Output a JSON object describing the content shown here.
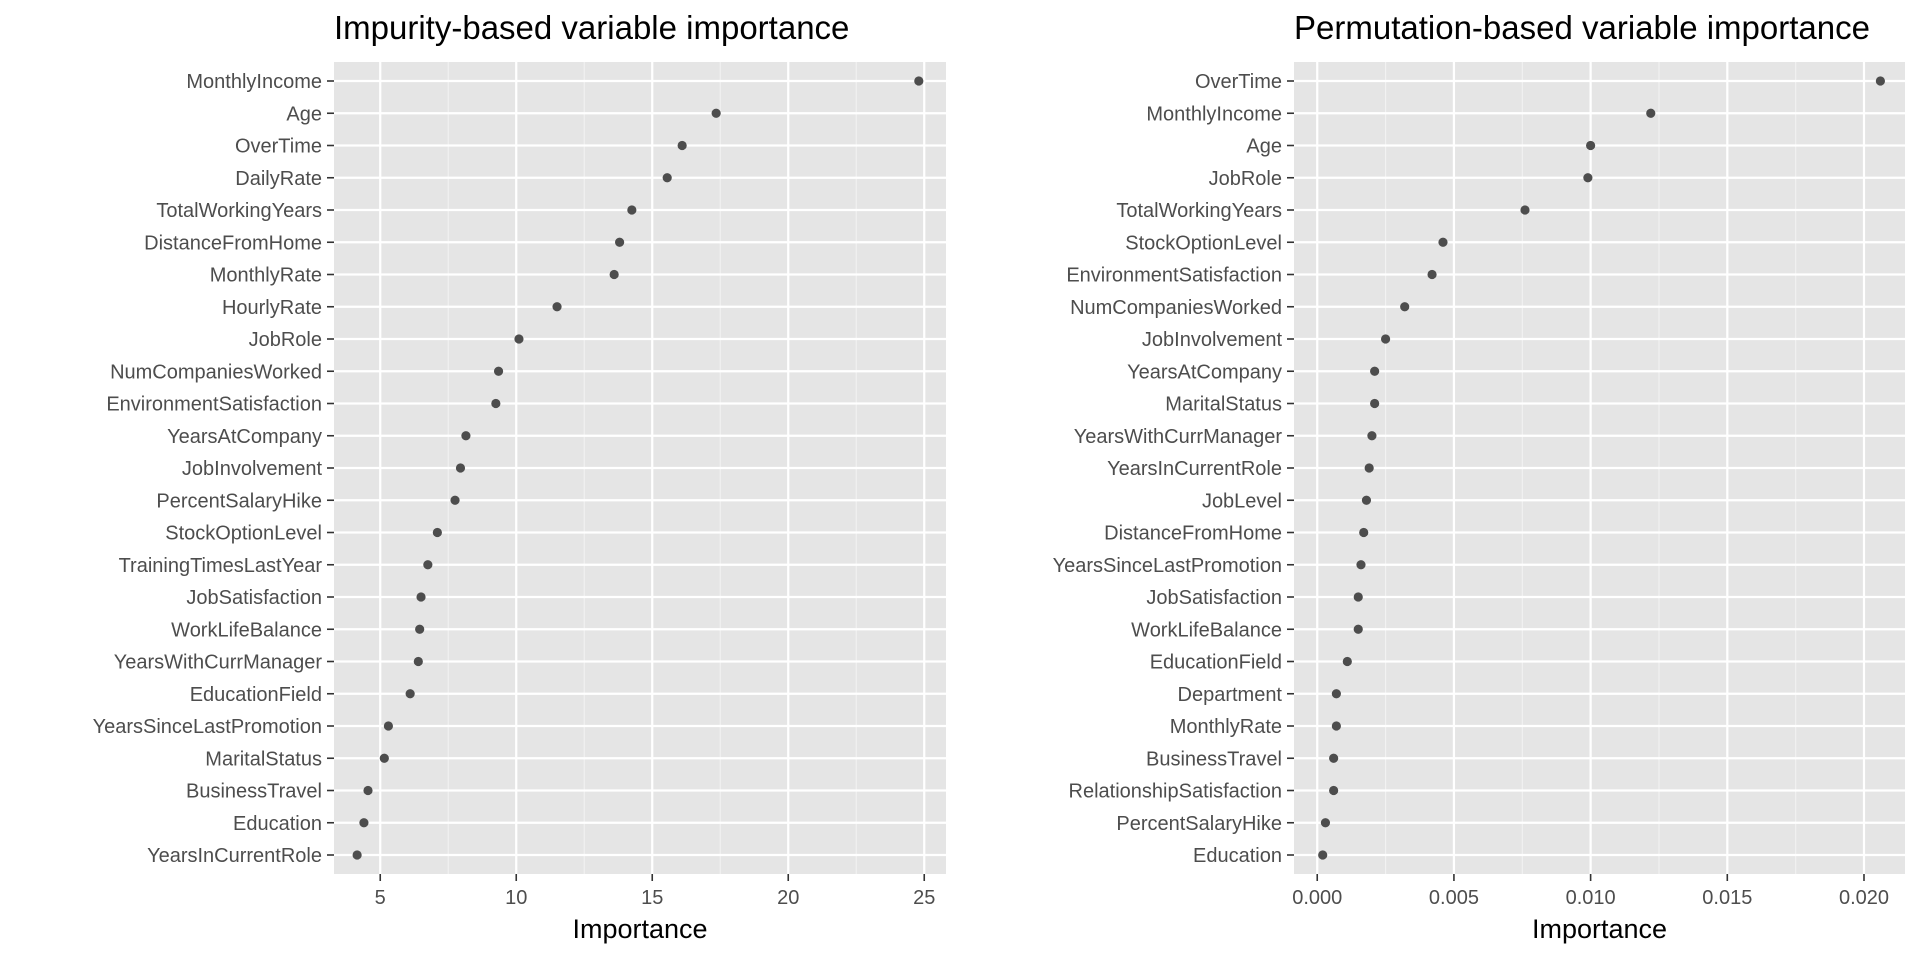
{
  "chart_data": [
    {
      "type": "scatter",
      "title": "Impurity-based variable importance",
      "xlabel": "Importance",
      "ylabel": "",
      "xlim": [
        3.3,
        25.8
      ],
      "xticks": [
        5,
        10,
        15,
        20,
        25
      ],
      "xtick_labels": [
        "5",
        "10",
        "15",
        "20",
        "25"
      ],
      "grid": true,
      "categories": [
        "MonthlyIncome",
        "Age",
        "OverTime",
        "DailyRate",
        "TotalWorkingYears",
        "DistanceFromHome",
        "MonthlyRate",
        "HourlyRate",
        "JobRole",
        "NumCompaniesWorked",
        "EnvironmentSatisfaction",
        "YearsAtCompany",
        "JobInvolvement",
        "PercentSalaryHike",
        "StockOptionLevel",
        "TrainingTimesLastYear",
        "JobSatisfaction",
        "WorkLifeBalance",
        "YearsWithCurrManager",
        "EducationField",
        "YearsSinceLastPromotion",
        "MaritalStatus",
        "BusinessTravel",
        "Education",
        "YearsInCurrentRole"
      ],
      "values": [
        24.8,
        17.35,
        16.1,
        15.55,
        14.25,
        13.8,
        13.6,
        11.5,
        10.1,
        9.35,
        9.25,
        8.15,
        7.95,
        7.75,
        7.1,
        6.75,
        6.5,
        6.45,
        6.4,
        6.1,
        5.3,
        5.15,
        4.55,
        4.4,
        4.15
      ],
      "point_color": "#4d4d4d"
    },
    {
      "type": "scatter",
      "title": "Permutation-based variable importance",
      "xlabel": "Importance",
      "ylabel": "",
      "xlim": [
        -0.00085,
        0.0215
      ],
      "xticks": [
        0,
        0.005,
        0.01,
        0.015,
        0.02
      ],
      "xtick_labels": [
        "0.000",
        "0.005",
        "0.010",
        "0.015",
        "0.020"
      ],
      "grid": true,
      "categories": [
        "OverTime",
        "MonthlyIncome",
        "Age",
        "JobRole",
        "TotalWorkingYears",
        "StockOptionLevel",
        "EnvironmentSatisfaction",
        "NumCompaniesWorked",
        "JobInvolvement",
        "YearsAtCompany",
        "MaritalStatus",
        "YearsWithCurrManager",
        "YearsInCurrentRole",
        "JobLevel",
        "DistanceFromHome",
        "YearsSinceLastPromotion",
        "JobSatisfaction",
        "WorkLifeBalance",
        "EducationField",
        "Department",
        "MonthlyRate",
        "BusinessTravel",
        "RelationshipSatisfaction",
        "PercentSalaryHike",
        "Education"
      ],
      "values": [
        0.0206,
        0.0122,
        0.01,
        0.0099,
        0.0076,
        0.0046,
        0.0042,
        0.0032,
        0.0025,
        0.0021,
        0.0021,
        0.002,
        0.0019,
        0.0018,
        0.0017,
        0.0016,
        0.0015,
        0.0015,
        0.0011,
        0.0007,
        0.0007,
        0.0006,
        0.0006,
        0.0003,
        0.0002
      ],
      "point_color": "#4d4d4d"
    }
  ]
}
